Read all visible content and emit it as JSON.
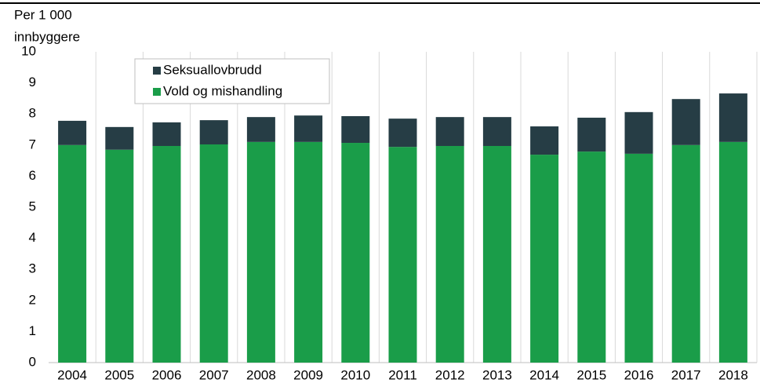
{
  "chart_data": {
    "type": "stacked_bar",
    "y_label": [
      "Per 1 000",
      "innbyggere"
    ],
    "categories": [
      "2004",
      "2005",
      "2006",
      "2007",
      "2008",
      "2009",
      "2010",
      "2011",
      "2012",
      "2013",
      "2014",
      "2015",
      "2016",
      "2017",
      "2018"
    ],
    "series": [
      {
        "name": "Vold og mishandling",
        "color": "#1a9d49",
        "values": [
          7.0,
          6.85,
          6.97,
          7.02,
          7.1,
          7.1,
          7.07,
          6.94,
          6.97,
          6.97,
          6.69,
          6.79,
          6.72,
          7.0,
          7.1
        ]
      },
      {
        "name": "Seksuallovbrudd",
        "color": "#263d45",
        "values": [
          0.78,
          0.73,
          0.76,
          0.78,
          0.8,
          0.85,
          0.86,
          0.91,
          0.93,
          0.93,
          0.91,
          1.09,
          1.34,
          1.48,
          1.56
        ]
      }
    ],
    "ylim": [
      0,
      10
    ],
    "yticks": [
      0,
      1,
      2,
      3,
      4,
      5,
      6,
      7,
      8,
      9,
      10
    ],
    "grid": "x",
    "legend": "upper left"
  }
}
